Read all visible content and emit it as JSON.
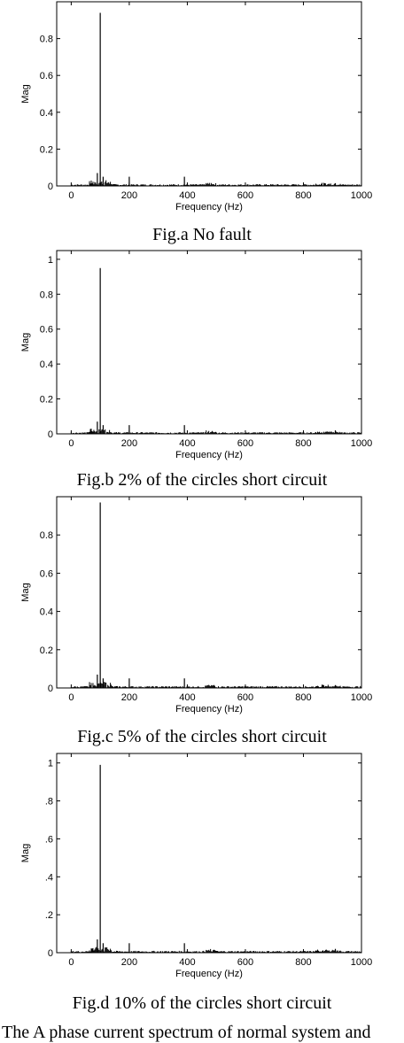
{
  "charts": [
    {
      "caption": "Fig.a No fault",
      "chart_data": {
        "type": "bar",
        "xlabel": "Frequency (Hz)",
        "ylabel": "Mag",
        "xlim": [
          -50,
          1000
        ],
        "ylim": [
          0,
          1.0
        ],
        "xticks": [
          "0",
          "200",
          "400",
          "600",
          "800",
          "1000"
        ],
        "yticks": [
          "0",
          "0.2",
          "0.4",
          "0.6",
          "0.8"
        ],
        "peaks": [
          {
            "x": 100,
            "y": 0.94
          },
          {
            "x": 90,
            "y": 0.07
          },
          {
            "x": 110,
            "y": 0.05
          },
          {
            "x": 200,
            "y": 0.05
          },
          {
            "x": 390,
            "y": 0.05
          },
          {
            "x": 910,
            "y": 0.015
          }
        ]
      }
    },
    {
      "caption": "Fig.b 2% of the circles short circuit",
      "chart_data": {
        "type": "bar",
        "xlabel": "Frequency (Hz)",
        "ylabel": "Mag",
        "xlim": [
          -50,
          1000
        ],
        "ylim": [
          0,
          1.05
        ],
        "xticks": [
          "0",
          "200",
          "400",
          "600",
          "800",
          "1000"
        ],
        "yticks": [
          "0",
          "0.2",
          "0.4",
          "0.6",
          "0.8",
          "1"
        ],
        "peaks": [
          {
            "x": 100,
            "y": 0.95
          },
          {
            "x": 90,
            "y": 0.07
          },
          {
            "x": 110,
            "y": 0.05
          },
          {
            "x": 200,
            "y": 0.05
          },
          {
            "x": 390,
            "y": 0.05
          },
          {
            "x": 910,
            "y": 0.02
          }
        ]
      }
    },
    {
      "caption": "Fig.c 5% of the circles short circuit",
      "chart_data": {
        "type": "bar",
        "xlabel": "Frequency (Hz)",
        "ylabel": "Mag",
        "xlim": [
          -50,
          1000
        ],
        "ylim": [
          0,
          1.0
        ],
        "xticks": [
          "0",
          "200",
          "400",
          "600",
          "800",
          "1000"
        ],
        "yticks": [
          "0",
          "0.2",
          "0.4",
          "0.6",
          "0.8"
        ],
        "peaks": [
          {
            "x": 100,
            "y": 0.97
          },
          {
            "x": 90,
            "y": 0.07
          },
          {
            "x": 110,
            "y": 0.05
          },
          {
            "x": 200,
            "y": 0.05
          },
          {
            "x": 390,
            "y": 0.05
          },
          {
            "x": 910,
            "y": 0.015
          }
        ]
      }
    },
    {
      "caption": "Fig.d 10% of the circles short circuit",
      "chart_data": {
        "type": "bar",
        "xlabel": "Frequency (Hz)",
        "ylabel": "Mag",
        "xlim": [
          -50,
          1000
        ],
        "ylim": [
          0,
          1.05
        ],
        "xticks": [
          "0",
          "200",
          "400",
          "600",
          "800",
          "1000"
        ],
        "yticks": [
          "0",
          ".2",
          ".4",
          ".6",
          ".8",
          "1"
        ],
        "peaks": [
          {
            "x": 100,
            "y": 0.99
          },
          {
            "x": 90,
            "y": 0.07
          },
          {
            "x": 110,
            "y": 0.05
          },
          {
            "x": 200,
            "y": 0.05
          },
          {
            "x": 390,
            "y": 0.05
          },
          {
            "x": 910,
            "y": 0.02
          }
        ]
      }
    }
  ],
  "footer_text": "The A phase current spectrum of normal system and"
}
